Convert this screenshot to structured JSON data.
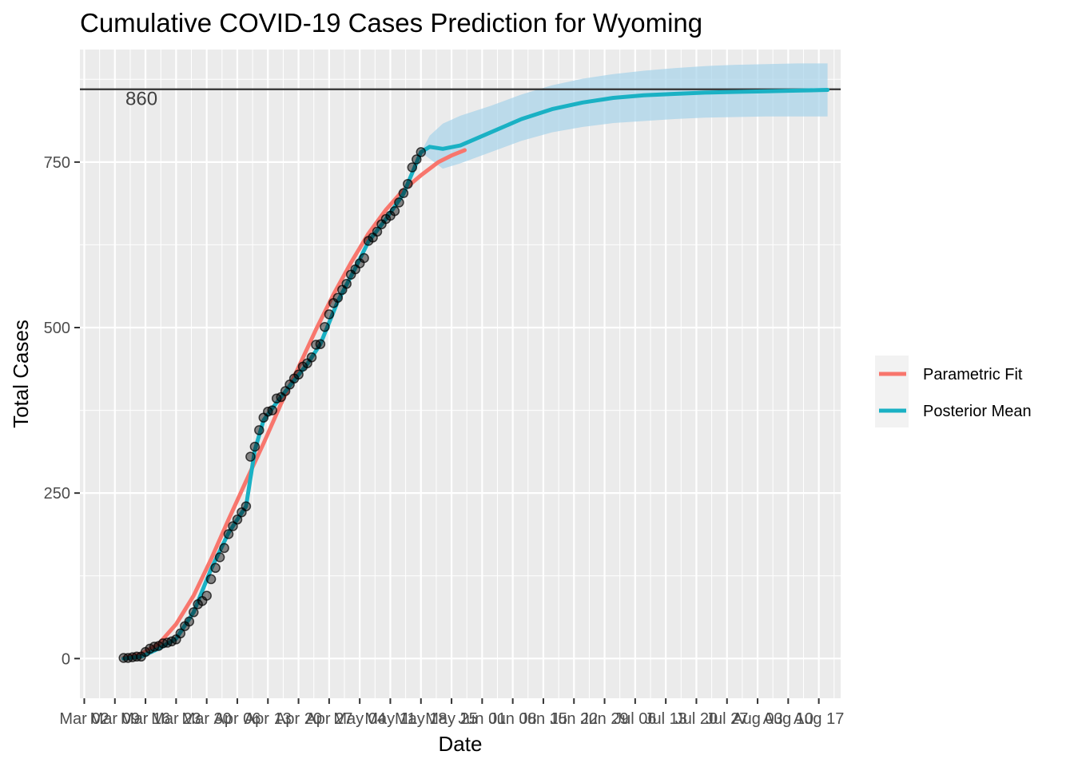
{
  "chart_data": {
    "type": "line",
    "title": "Cumulative COVID-19 Cases Prediction for Wyoming",
    "xlabel": "Date",
    "ylabel": "Total Cases",
    "x_start": "2020-03-01",
    "x_end": "2020-08-22",
    "ylim": [
      -60,
      920
    ],
    "y_ticks": [
      0,
      250,
      500,
      750
    ],
    "x_tick_dates": [
      "2020-03-02",
      "2020-03-09",
      "2020-03-16",
      "2020-03-23",
      "2020-03-30",
      "2020-04-06",
      "2020-04-13",
      "2020-04-20",
      "2020-04-27",
      "2020-05-04",
      "2020-05-11",
      "2020-05-18",
      "2020-05-25",
      "2020-06-01",
      "2020-06-08",
      "2020-06-15",
      "2020-06-22",
      "2020-06-29",
      "2020-07-06",
      "2020-07-13",
      "2020-07-20",
      "2020-07-27",
      "2020-08-03",
      "2020-08-10",
      "2020-08-17"
    ],
    "x_tick_labels": [
      "Mar 02",
      "Mar 09",
      "Mar 16",
      "Mar 23",
      "Mar 30",
      "Apr 06",
      "Apr 13",
      "Apr 20",
      "Apr 27",
      "May 04",
      "May 11",
      "May 18",
      "May 25",
      "Jun 01",
      "Jun 08",
      "Jun 15",
      "Jun 22",
      "Jun 29",
      "Jul 06",
      "Jul 13",
      "Jul 20",
      "Jul 27",
      "Aug 03",
      "Aug 10",
      "Aug 17"
    ],
    "grid": true,
    "hline": {
      "y": 860,
      "label": "860"
    },
    "legend": {
      "position": "right",
      "entries": [
        {
          "name": "Parametric Fit",
          "color": "#F8766D"
        },
        {
          "name": "Posterior Mean",
          "color": "#1AB1C4"
        }
      ]
    },
    "observed": [
      [
        "2020-03-11",
        1
      ],
      [
        "2020-03-12",
        1
      ],
      [
        "2020-03-13",
        2
      ],
      [
        "2020-03-14",
        3
      ],
      [
        "2020-03-15",
        3
      ],
      [
        "2020-03-16",
        10
      ],
      [
        "2020-03-17",
        15
      ],
      [
        "2020-03-18",
        18
      ],
      [
        "2020-03-19",
        19
      ],
      [
        "2020-03-20",
        23
      ],
      [
        "2020-03-21",
        24
      ],
      [
        "2020-03-22",
        26
      ],
      [
        "2020-03-23",
        29
      ],
      [
        "2020-03-24",
        38
      ],
      [
        "2020-03-25",
        49
      ],
      [
        "2020-03-26",
        56
      ],
      [
        "2020-03-27",
        70
      ],
      [
        "2020-03-28",
        82
      ],
      [
        "2020-03-29",
        87
      ],
      [
        "2020-03-30",
        95
      ],
      [
        "2020-03-31",
        120
      ],
      [
        "2020-04-01",
        137
      ],
      [
        "2020-04-02",
        153
      ],
      [
        "2020-04-03",
        167
      ],
      [
        "2020-04-04",
        188
      ],
      [
        "2020-04-05",
        200
      ],
      [
        "2020-04-06",
        210
      ],
      [
        "2020-04-07",
        221
      ],
      [
        "2020-04-08",
        230
      ],
      [
        "2020-04-09",
        305
      ],
      [
        "2020-04-10",
        320
      ],
      [
        "2020-04-11",
        345
      ],
      [
        "2020-04-12",
        364
      ],
      [
        "2020-04-13",
        373
      ],
      [
        "2020-04-14",
        375
      ],
      [
        "2020-04-15",
        393
      ],
      [
        "2020-04-16",
        395
      ],
      [
        "2020-04-17",
        404
      ],
      [
        "2020-04-18",
        414
      ],
      [
        "2020-04-19",
        423
      ],
      [
        "2020-04-20",
        429
      ],
      [
        "2020-04-21",
        441
      ],
      [
        "2020-04-22",
        446
      ],
      [
        "2020-04-23",
        455
      ],
      [
        "2020-04-24",
        474
      ],
      [
        "2020-04-25",
        475
      ],
      [
        "2020-04-26",
        501
      ],
      [
        "2020-04-27",
        520
      ],
      [
        "2020-04-28",
        537
      ],
      [
        "2020-04-29",
        545
      ],
      [
        "2020-04-30",
        557
      ],
      [
        "2020-05-01",
        566
      ],
      [
        "2020-05-02",
        580
      ],
      [
        "2020-05-03",
        588
      ],
      [
        "2020-05-04",
        597
      ],
      [
        "2020-05-05",
        605
      ],
      [
        "2020-05-06",
        631
      ],
      [
        "2020-05-07",
        636
      ],
      [
        "2020-05-08",
        645
      ],
      [
        "2020-05-09",
        656
      ],
      [
        "2020-05-10",
        664
      ],
      [
        "2020-05-11",
        669
      ],
      [
        "2020-05-12",
        676
      ],
      [
        "2020-05-13",
        689
      ],
      [
        "2020-05-14",
        703
      ],
      [
        "2020-05-15",
        717
      ],
      [
        "2020-05-16",
        742
      ],
      [
        "2020-05-17",
        754
      ],
      [
        "2020-05-18",
        765
      ]
    ],
    "series": [
      {
        "name": "Parametric Fit",
        "color": "#F8766D",
        "points": [
          [
            "2020-03-11",
            1
          ],
          [
            "2020-03-15",
            7
          ],
          [
            "2020-03-19",
            22
          ],
          [
            "2020-03-23",
            52
          ],
          [
            "2020-03-27",
            95
          ],
          [
            "2020-03-31",
            150
          ],
          [
            "2020-04-04",
            210
          ],
          [
            "2020-04-08",
            268
          ],
          [
            "2020-04-12",
            325
          ],
          [
            "2020-04-16",
            385
          ],
          [
            "2020-04-20",
            440
          ],
          [
            "2020-04-24",
            497
          ],
          [
            "2020-04-28",
            550
          ],
          [
            "2020-05-02",
            598
          ],
          [
            "2020-05-06",
            642
          ],
          [
            "2020-05-10",
            678
          ],
          [
            "2020-05-14",
            708
          ],
          [
            "2020-05-18",
            730
          ],
          [
            "2020-05-22",
            750
          ],
          [
            "2020-05-25",
            760
          ],
          [
            "2020-05-28",
            768
          ]
        ]
      },
      {
        "name": "Posterior Mean",
        "color": "#1AB1C4",
        "points": [
          [
            "2020-03-11",
            0
          ],
          [
            "2020-03-15",
            3
          ],
          [
            "2020-03-19",
            15
          ],
          [
            "2020-03-23",
            30
          ],
          [
            "2020-03-27",
            70
          ],
          [
            "2020-03-31",
            135
          ],
          [
            "2020-04-04",
            190
          ],
          [
            "2020-04-08",
            230
          ],
          [
            "2020-04-10",
            315
          ],
          [
            "2020-04-12",
            360
          ],
          [
            "2020-04-14",
            378
          ],
          [
            "2020-04-18",
            412
          ],
          [
            "2020-04-22",
            445
          ],
          [
            "2020-04-25",
            475
          ],
          [
            "2020-04-29",
            540
          ],
          [
            "2020-05-03",
            590
          ],
          [
            "2020-05-06",
            630
          ],
          [
            "2020-05-10",
            664
          ],
          [
            "2020-05-14",
            702
          ],
          [
            "2020-05-18",
            765
          ],
          [
            "2020-05-20",
            773
          ],
          [
            "2020-05-23",
            770
          ],
          [
            "2020-05-27",
            775
          ],
          [
            "2020-06-03",
            795
          ],
          [
            "2020-06-10",
            815
          ],
          [
            "2020-06-17",
            830
          ],
          [
            "2020-06-24",
            840
          ],
          [
            "2020-07-01",
            847
          ],
          [
            "2020-07-08",
            851
          ],
          [
            "2020-07-15",
            853
          ],
          [
            "2020-07-22",
            855
          ],
          [
            "2020-07-29",
            856
          ],
          [
            "2020-08-05",
            857
          ],
          [
            "2020-08-12",
            858
          ],
          [
            "2020-08-19",
            859
          ]
        ]
      }
    ],
    "ribbon": {
      "color": "#A6D3EA",
      "upper": [
        [
          "2020-05-18",
          765
        ],
        [
          "2020-05-20",
          790
        ],
        [
          "2020-05-23",
          808
        ],
        [
          "2020-05-27",
          820
        ],
        [
          "2020-06-03",
          835
        ],
        [
          "2020-06-10",
          852
        ],
        [
          "2020-06-17",
          866
        ],
        [
          "2020-06-24",
          876
        ],
        [
          "2020-07-01",
          883
        ],
        [
          "2020-07-08",
          888
        ],
        [
          "2020-07-15",
          892
        ],
        [
          "2020-07-22",
          895
        ],
        [
          "2020-07-29",
          897
        ],
        [
          "2020-08-05",
          898
        ],
        [
          "2020-08-12",
          899
        ],
        [
          "2020-08-19",
          899
        ]
      ],
      "lower": [
        [
          "2020-05-18",
          765
        ],
        [
          "2020-05-20",
          755
        ],
        [
          "2020-05-23",
          740
        ],
        [
          "2020-05-27",
          748
        ],
        [
          "2020-06-03",
          765
        ],
        [
          "2020-06-10",
          782
        ],
        [
          "2020-06-17",
          795
        ],
        [
          "2020-06-24",
          803
        ],
        [
          "2020-07-01",
          809
        ],
        [
          "2020-07-08",
          812
        ],
        [
          "2020-07-15",
          815
        ],
        [
          "2020-07-22",
          817
        ],
        [
          "2020-07-29",
          818
        ],
        [
          "2020-08-05",
          819
        ],
        [
          "2020-08-12",
          819
        ],
        [
          "2020-08-19",
          819
        ]
      ]
    }
  }
}
